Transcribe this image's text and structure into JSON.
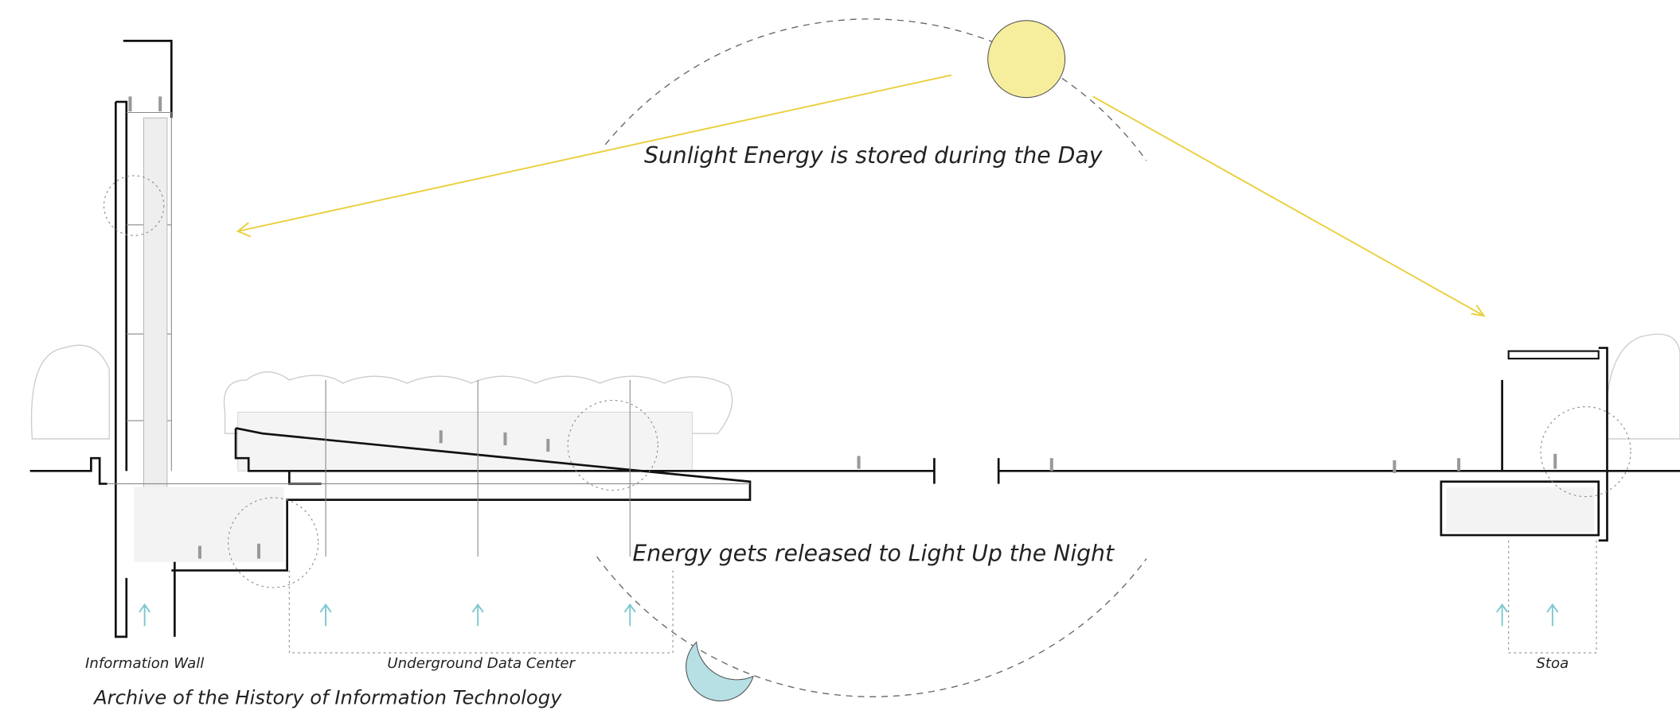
{
  "annotations": {
    "day": "Sunlight Energy is stored during the Day",
    "night": "Energy gets released to Light Up the Night"
  },
  "labels": {
    "information_wall": "Information Wall",
    "underground_data_center": "Underground Data Center",
    "stoa": "Stoa"
  },
  "caption": "Archive of the History of Information Technology"
}
